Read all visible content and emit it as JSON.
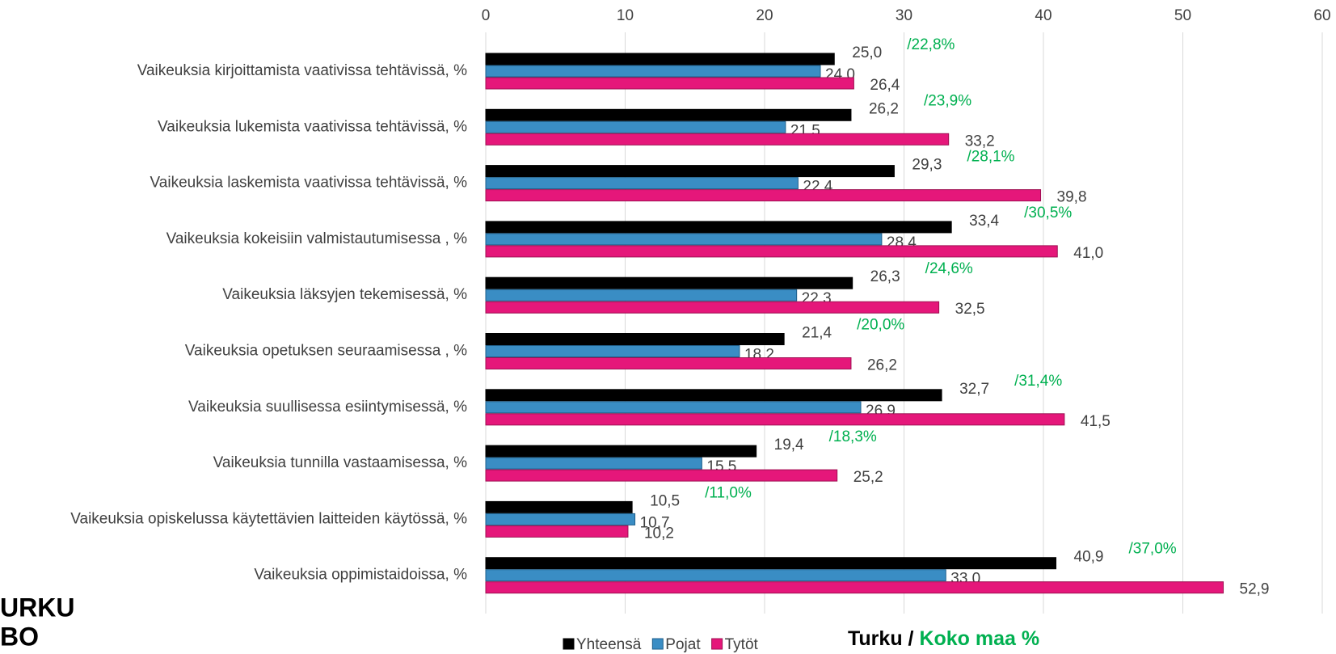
{
  "chart_data": {
    "type": "hbar",
    "categories": [
      "Vaikeuksia kirjoittamista vaativissa tehtävissä, %",
      "Vaikeuksia lukemista vaativissa tehtävissä, %",
      "Vaikeuksia laskemista vaativissa tehtävissä, %",
      "Vaikeuksia kokeisiin valmistautumisessa , %",
      "Vaikeuksia läksyjen tekemisessä, %",
      "Vaikeuksia opetuksen seuraamisessa , %",
      "Vaikeuksia suullisessa esiintymisessä, %",
      "Vaikeuksia tunnilla vastaamisessa, %",
      "Vaikeuksia opiskelussa käytettävien laitteiden käytössä, %",
      "Vaikeuksia oppimistaidoissa, %"
    ],
    "series": [
      {
        "name": "Yhteensä",
        "color": "#000000",
        "values": [
          25.0,
          26.2,
          29.3,
          33.4,
          26.3,
          21.4,
          32.7,
          19.4,
          10.5,
          40.9
        ],
        "value_labels": [
          "25,0",
          "26,2",
          "29,3",
          "33,4",
          "26,3",
          "21,4",
          "32,7",
          "19,4",
          "10,5",
          "40,9"
        ]
      },
      {
        "name": "Pojat",
        "color": "#3a8dc4",
        "values": [
          24.0,
          21.5,
          22.4,
          28.4,
          22.3,
          18.2,
          26.9,
          15.5,
          10.7,
          33.0
        ],
        "value_labels": [
          "24,0",
          "21,5",
          "22,4",
          "28,4",
          "22,3",
          "18,2",
          "26,9",
          "15,5",
          "10,7",
          "33,0"
        ]
      },
      {
        "name": "Tytöt",
        "color": "#e5177a",
        "values": [
          26.4,
          33.2,
          39.8,
          41.0,
          32.5,
          26.2,
          41.5,
          25.2,
          10.2,
          52.9
        ],
        "value_labels": [
          "26,4",
          "33,2",
          "39,8",
          "41,0",
          "32,5",
          "26,2",
          "41,5",
          "25,2",
          "10,2",
          "52,9"
        ]
      }
    ],
    "annotations": [
      "/22,8%",
      "/23,9%",
      "/28,1%",
      "/30,5%",
      "/24,6%",
      "/20,0%",
      "/31,4%",
      "/18,3%",
      "/11,0%",
      "/37,0%"
    ],
    "annotation_color": "#00b050",
    "subtitle": {
      "left": "Turku /",
      "right": "Koko maa %"
    },
    "logo": [
      "URKU",
      "BO"
    ],
    "xlim": [
      0,
      60
    ],
    "xticks": [
      0,
      10,
      20,
      30,
      40,
      50,
      60
    ],
    "grid": true
  }
}
